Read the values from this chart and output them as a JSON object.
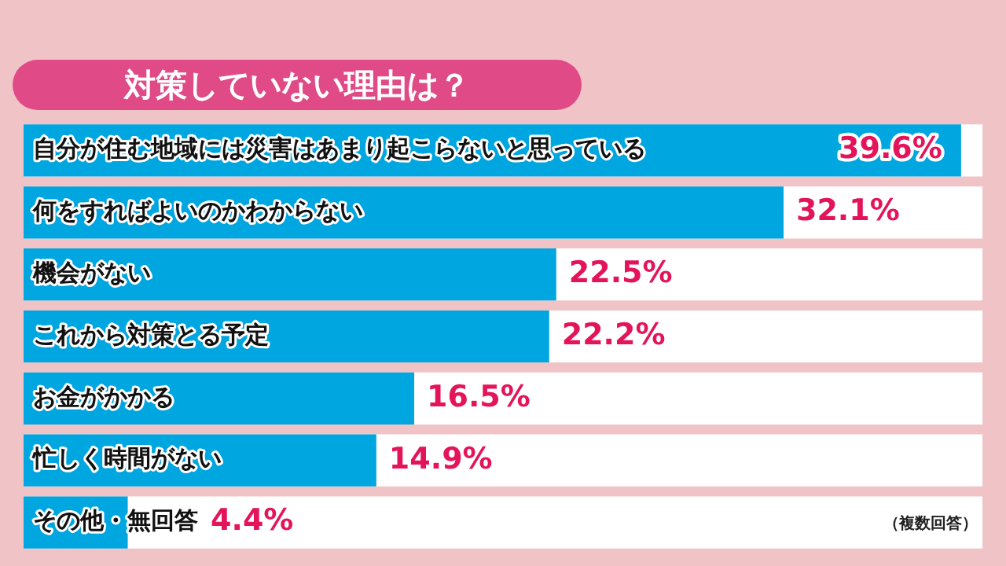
{
  "chart_data": {
    "type": "bar",
    "orientation": "horizontal",
    "title": "対策していない理由は？",
    "categories": [
      "自分が住む地域には災害はあまり起こらないと思っている",
      "何をすればよいのかわからない",
      "機会がない",
      "これから対策とる予定",
      "お金がかかる",
      "忙しく時間がない",
      "その他・無回答"
    ],
    "values": [
      39.6,
      32.1,
      22.5,
      22.2,
      16.5,
      14.9,
      4.4
    ],
    "value_labels": [
      "39.6%",
      "32.1%",
      "22.5%",
      "22.2%",
      "16.5%",
      "14.9%",
      "4.4%"
    ],
    "color": "#00a6e0",
    "xlim": [
      0,
      40.5
    ],
    "legend": false,
    "annotations": [
      "（複数回答）"
    ]
  }
}
